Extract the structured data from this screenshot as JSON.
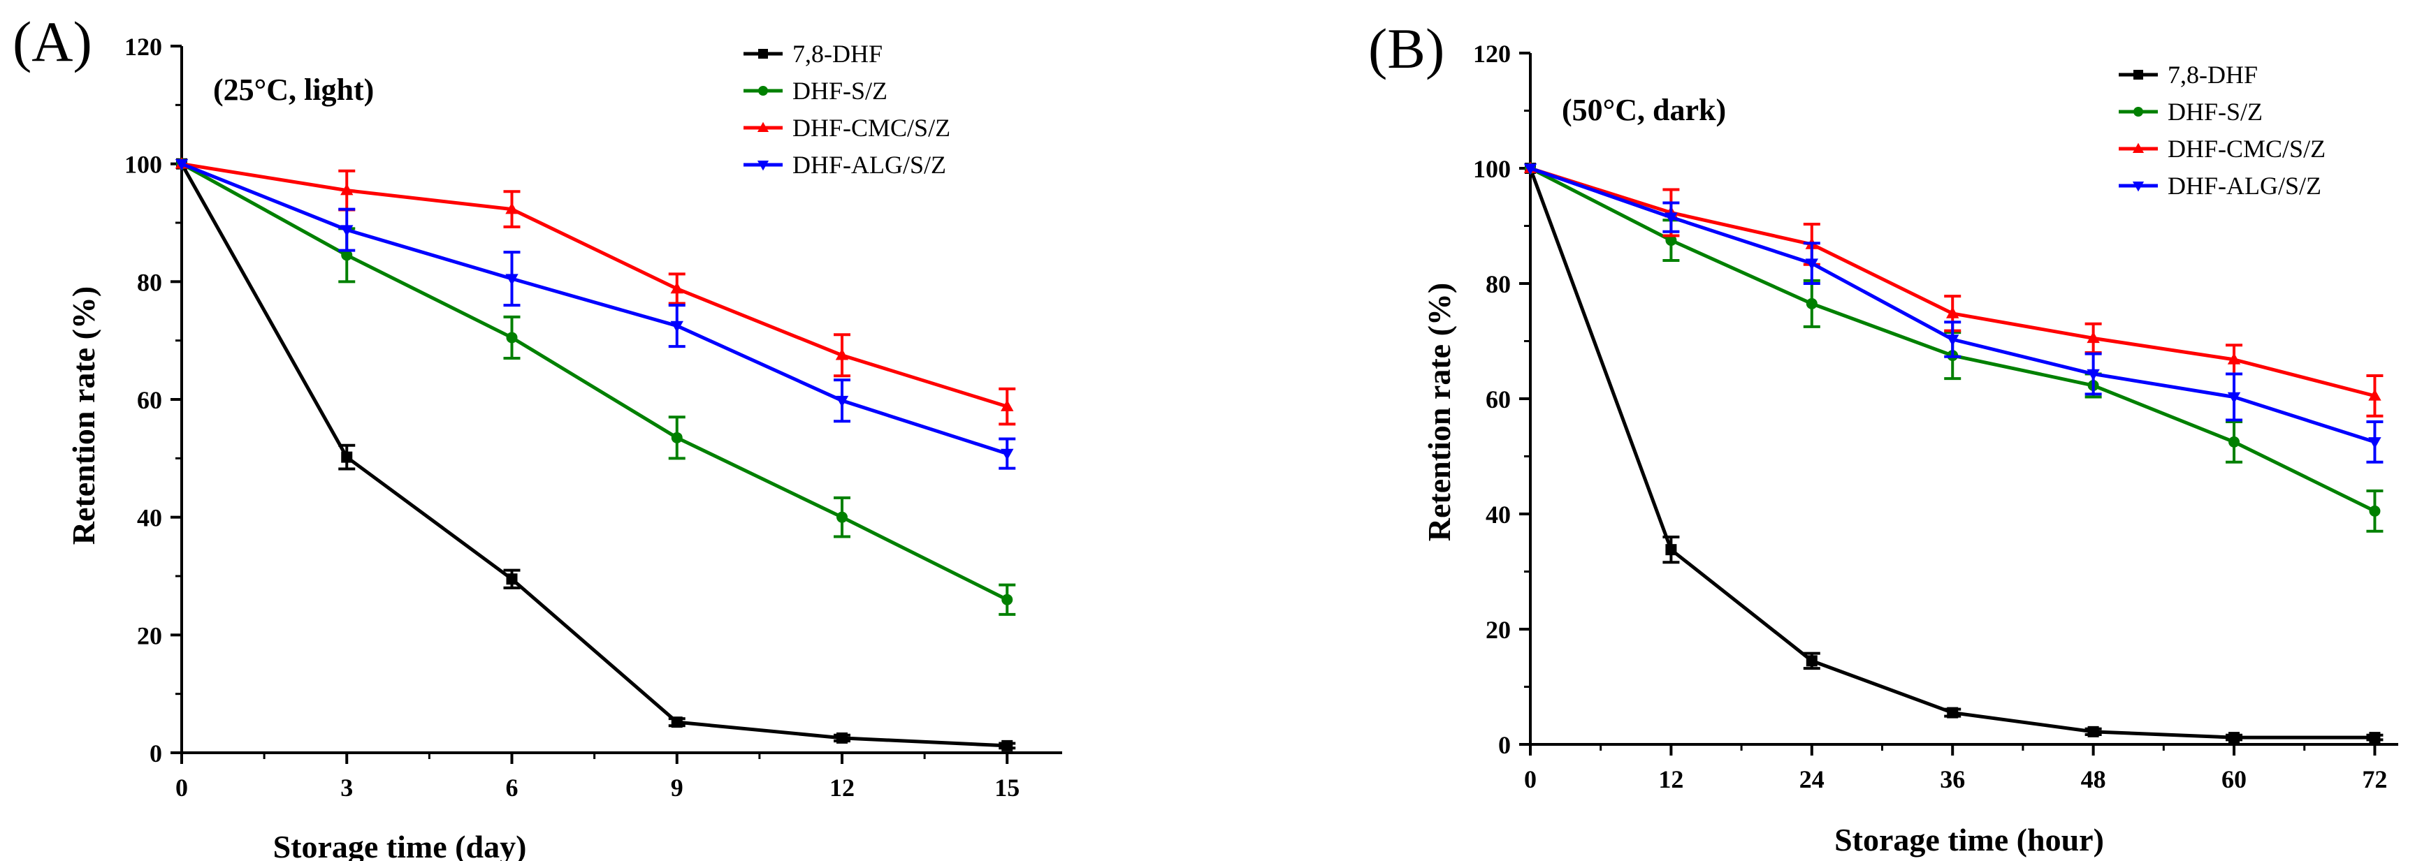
{
  "colors": {
    "7,8-DHF": "#000000",
    "DHF-S/Z": "#008000",
    "DHF-CMC/S/Z": "#ff0000",
    "DHF-ALG/S/Z": "#0000ff"
  },
  "chart_data": [
    {
      "type": "line",
      "panel_label": "(A)",
      "title": "(25°C, light)",
      "xlabel": "Storage time (day)",
      "ylabel": "Retention rate (%)",
      "x": [
        0,
        3,
        6,
        9,
        12,
        15
      ],
      "xlim": [
        0,
        16
      ],
      "ylim": [
        0,
        120
      ],
      "xticks": [
        0,
        3,
        6,
        9,
        12,
        15
      ],
      "yticks": [
        0,
        20,
        40,
        60,
        80,
        100,
        120
      ],
      "legend_position": "top-right",
      "series": [
        {
          "name": "7,8-DHF",
          "marker": "square",
          "values": [
            100,
            50.2,
            29.5,
            5.2,
            2.5,
            1.2
          ],
          "errors": [
            0,
            2.0,
            1.5,
            0.6,
            0.5,
            0.4
          ]
        },
        {
          "name": "DHF-S/Z",
          "marker": "circle",
          "values": [
            100,
            84.5,
            70.5,
            53.5,
            40.0,
            26.0
          ],
          "errors": [
            0,
            4.5,
            3.5,
            3.5,
            3.3,
            2.5
          ]
        },
        {
          "name": "DHF-CMC/S/Z",
          "marker": "triangle-up",
          "values": [
            100,
            95.5,
            92.3,
            78.8,
            67.5,
            58.8
          ],
          "errors": [
            0,
            3.3,
            3.0,
            2.5,
            3.5,
            3.0
          ]
        },
        {
          "name": "DHF-ALG/S/Z",
          "marker": "triangle-down",
          "values": [
            100,
            88.8,
            80.5,
            72.5,
            59.8,
            50.8
          ],
          "errors": [
            0,
            3.5,
            4.5,
            3.5,
            3.5,
            2.5
          ]
        }
      ]
    },
    {
      "type": "line",
      "panel_label": "(B)",
      "title": "(50°C, dark)",
      "xlabel": "Storage time (hour)",
      "ylabel": "Retention rate (%)",
      "x": [
        0,
        12,
        24,
        36,
        48,
        60,
        72
      ],
      "xlim": [
        0,
        74
      ],
      "ylim": [
        0,
        120
      ],
      "xticks": [
        0,
        12,
        24,
        36,
        48,
        60,
        72
      ],
      "yticks": [
        0,
        20,
        40,
        60,
        80,
        100,
        120
      ],
      "legend_position": "top-right",
      "series": [
        {
          "name": "7,8-DHF",
          "marker": "square",
          "values": [
            100,
            33.8,
            14.5,
            5.5,
            2.2,
            1.2,
            1.2
          ],
          "errors": [
            0,
            2.2,
            1.3,
            0.6,
            0.5,
            0.4,
            0.4
          ]
        },
        {
          "name": "DHF-S/Z",
          "marker": "circle",
          "values": [
            100,
            87.5,
            76.5,
            67.5,
            62.3,
            52.5,
            40.5
          ],
          "errors": [
            0,
            3.5,
            4.0,
            4.0,
            2.0,
            3.5,
            3.5
          ]
        },
        {
          "name": "DHF-CMC/S/Z",
          "marker": "triangle-up",
          "values": [
            100,
            92.3,
            86.8,
            74.8,
            70.5,
            66.8,
            60.5
          ],
          "errors": [
            0,
            4.0,
            3.5,
            3.0,
            2.5,
            2.5,
            3.5
          ]
        },
        {
          "name": "DHF-ALG/S/Z",
          "marker": "triangle-down",
          "values": [
            100,
            91.5,
            83.5,
            70.3,
            64.3,
            60.3,
            52.5
          ],
          "errors": [
            0,
            2.5,
            3.5,
            3.0,
            3.5,
            4.0,
            3.5
          ]
        }
      ]
    }
  ]
}
